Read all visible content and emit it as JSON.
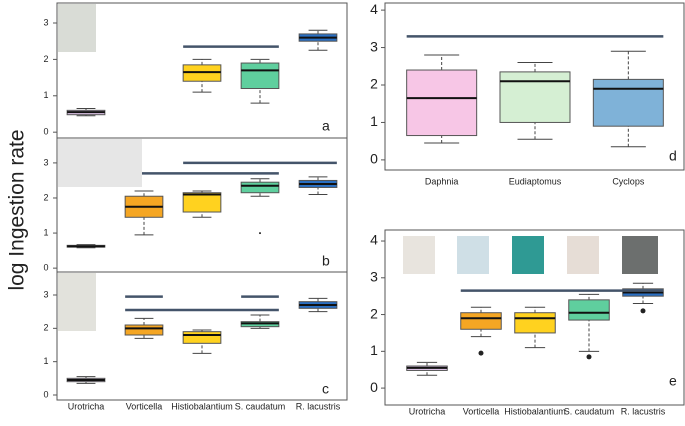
{
  "ylabel": "log Ingestion rate",
  "chart_data": [
    {
      "type": "box",
      "label": "a",
      "ylim": [
        -0.16,
        3.55
      ],
      "yticks": [
        0,
        1,
        2,
        3
      ],
      "colors": [
        "#e3c7ec",
        "#f5a623",
        "#ffd21f",
        "#5fcf9e",
        "#2a6fc2"
      ],
      "min": [
        0.45,
        null,
        1.1,
        0.8,
        2.25
      ],
      "q1": [
        0.48,
        null,
        1.4,
        1.2,
        2.5
      ],
      "median": [
        0.55,
        null,
        1.65,
        1.7,
        2.6
      ],
      "q3": [
        0.6,
        null,
        1.85,
        1.9,
        2.7
      ],
      "max": [
        0.65,
        null,
        2.0,
        2.0,
        2.8
      ],
      "outliers": [
        [],
        [],
        [],
        [],
        []
      ],
      "lines": [
        {
          "y": 2.35,
          "span": [
            2,
            3
          ]
        }
      ]
    },
    {
      "type": "box",
      "label": "b",
      "ylim": [
        -0.11,
        3.71
      ],
      "yticks": [
        0,
        1,
        2,
        3
      ],
      "colors": [
        "#e3c7ec",
        "#f5a623",
        "#ffd21f",
        "#5fcf9e",
        "#2a6fc2"
      ],
      "min": [
        0.58,
        0.95,
        1.45,
        2.05,
        2.1
      ],
      "q1": [
        0.6,
        1.45,
        1.6,
        2.15,
        2.3
      ],
      "median": [
        0.62,
        1.75,
        2.1,
        2.35,
        2.4
      ],
      "q3": [
        0.65,
        2.05,
        2.15,
        2.45,
        2.5
      ],
      "max": [
        0.67,
        2.2,
        2.2,
        2.55,
        2.6
      ],
      "outliers": [
        [],
        [],
        [],
        [
          1.0
        ],
        []
      ],
      "lines": [
        {
          "y": 3.0,
          "span": [
            2,
            4
          ]
        },
        {
          "y": 2.7,
          "span": [
            1,
            3
          ]
        }
      ]
    },
    {
      "type": "box",
      "label": "c",
      "ylim": [
        -0.15,
        3.69
      ],
      "yticks": [
        0,
        1,
        2,
        3
      ],
      "categories": [
        "Urotricha",
        "Vorticella",
        "Histiobalantium",
        "S. caudatum",
        "R. lacustris"
      ],
      "colors": [
        "#e3c7ec",
        "#f5a623",
        "#ffd21f",
        "#5fcf9e",
        "#2a6fc2"
      ],
      "min": [
        0.35,
        1.7,
        1.25,
        2.0,
        2.5
      ],
      "q1": [
        0.4,
        1.8,
        1.55,
        2.05,
        2.6
      ],
      "median": [
        0.45,
        2.0,
        1.8,
        2.15,
        2.7
      ],
      "q3": [
        0.5,
        2.1,
        1.9,
        2.2,
        2.8
      ],
      "max": [
        0.55,
        2.3,
        1.95,
        2.4,
        2.9
      ],
      "outliers": [
        [],
        [],
        [],
        [],
        []
      ],
      "lines": [
        {
          "y": 2.95,
          "span": [
            1,
            1
          ]
        },
        {
          "y": 2.55,
          "span": [
            1,
            3
          ]
        },
        {
          "y": 2.95,
          "span": [
            3,
            3
          ]
        }
      ]
    },
    {
      "type": "box",
      "label": "d",
      "ylim": [
        -0.27,
        4.19
      ],
      "yticks": [
        0,
        1,
        2,
        3,
        4
      ],
      "categories": [
        "Daphnia",
        "Eudiaptomus",
        "Cyclops"
      ],
      "colors": [
        "#f7c6e6",
        "#d5efd3",
        "#7fb2d8"
      ],
      "min": [
        0.45,
        0.55,
        0.35
      ],
      "q1": [
        0.65,
        1.0,
        0.9
      ],
      "median": [
        1.65,
        2.1,
        1.9
      ],
      "q3": [
        2.4,
        2.35,
        2.15
      ],
      "max": [
        2.8,
        2.6,
        2.9
      ],
      "outliers": [
        [],
        [],
        []
      ],
      "lines": [
        {
          "y": 3.3,
          "span": [
            0,
            2
          ]
        }
      ]
    },
    {
      "type": "box",
      "label": "e",
      "ylim": [
        -0.46,
        4.3
      ],
      "yticks": [
        0,
        1,
        2,
        3,
        4
      ],
      "categories": [
        "Urotricha",
        "Vorticella",
        "Histiobalantium",
        "S. caudatum",
        "R. lacustris"
      ],
      "colors": [
        "#e3c7ec",
        "#f5a623",
        "#ffd21f",
        "#5fcf9e",
        "#2a6fc2"
      ],
      "min": [
        0.35,
        1.4,
        1.1,
        1.0,
        2.3
      ],
      "q1": [
        0.48,
        1.6,
        1.5,
        1.85,
        2.5
      ],
      "median": [
        0.55,
        1.9,
        1.9,
        2.05,
        2.6
      ],
      "q3": [
        0.6,
        2.05,
        2.05,
        2.4,
        2.7
      ],
      "max": [
        0.7,
        2.2,
        2.2,
        2.55,
        2.85
      ],
      "outliers": [
        [],
        [
          0.95
        ],
        [],
        [
          0.85
        ],
        [
          2.1
        ]
      ],
      "lines": [
        {
          "y": 2.65,
          "span": [
            1,
            4
          ]
        }
      ]
    }
  ]
}
